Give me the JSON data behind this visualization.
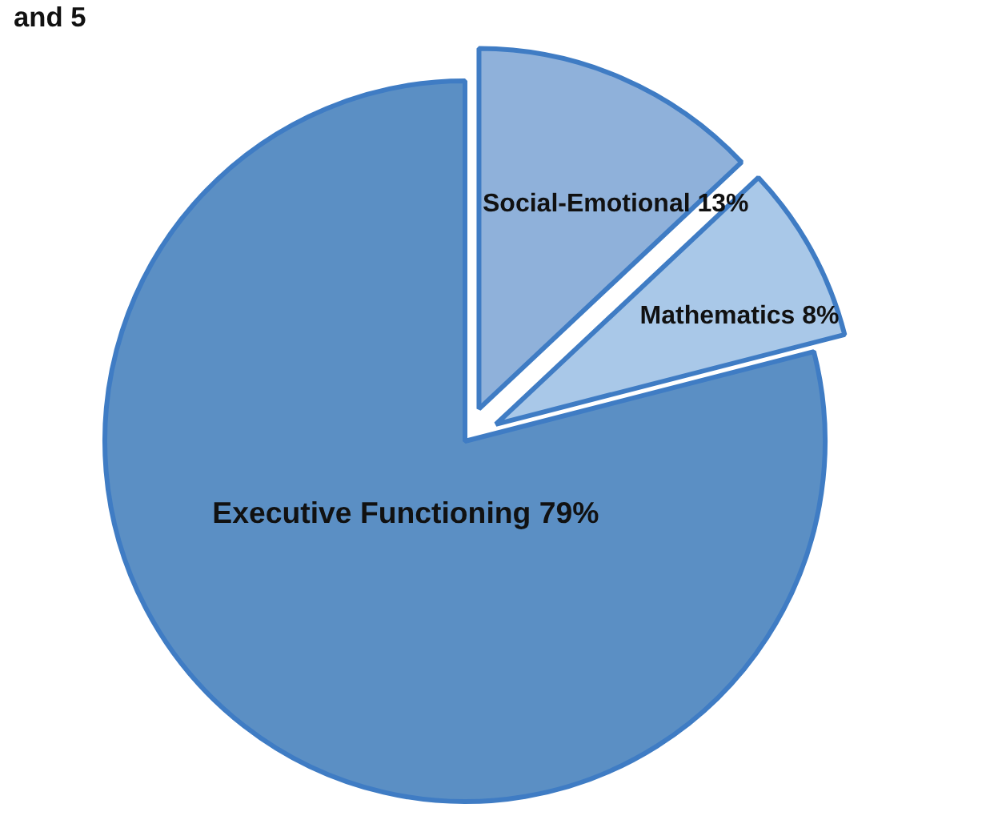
{
  "chart_data": {
    "type": "pie",
    "title": "and 5",
    "categories": [
      "Social-Emotional",
      "Mathematics",
      "Executive Functioning"
    ],
    "values": [
      13,
      8,
      79
    ],
    "value_labels": [
      "13%",
      "8%",
      "79%"
    ],
    "colors": [
      "#8fb1da",
      "#a9c8e8",
      "#5b8fc4"
    ]
  }
}
